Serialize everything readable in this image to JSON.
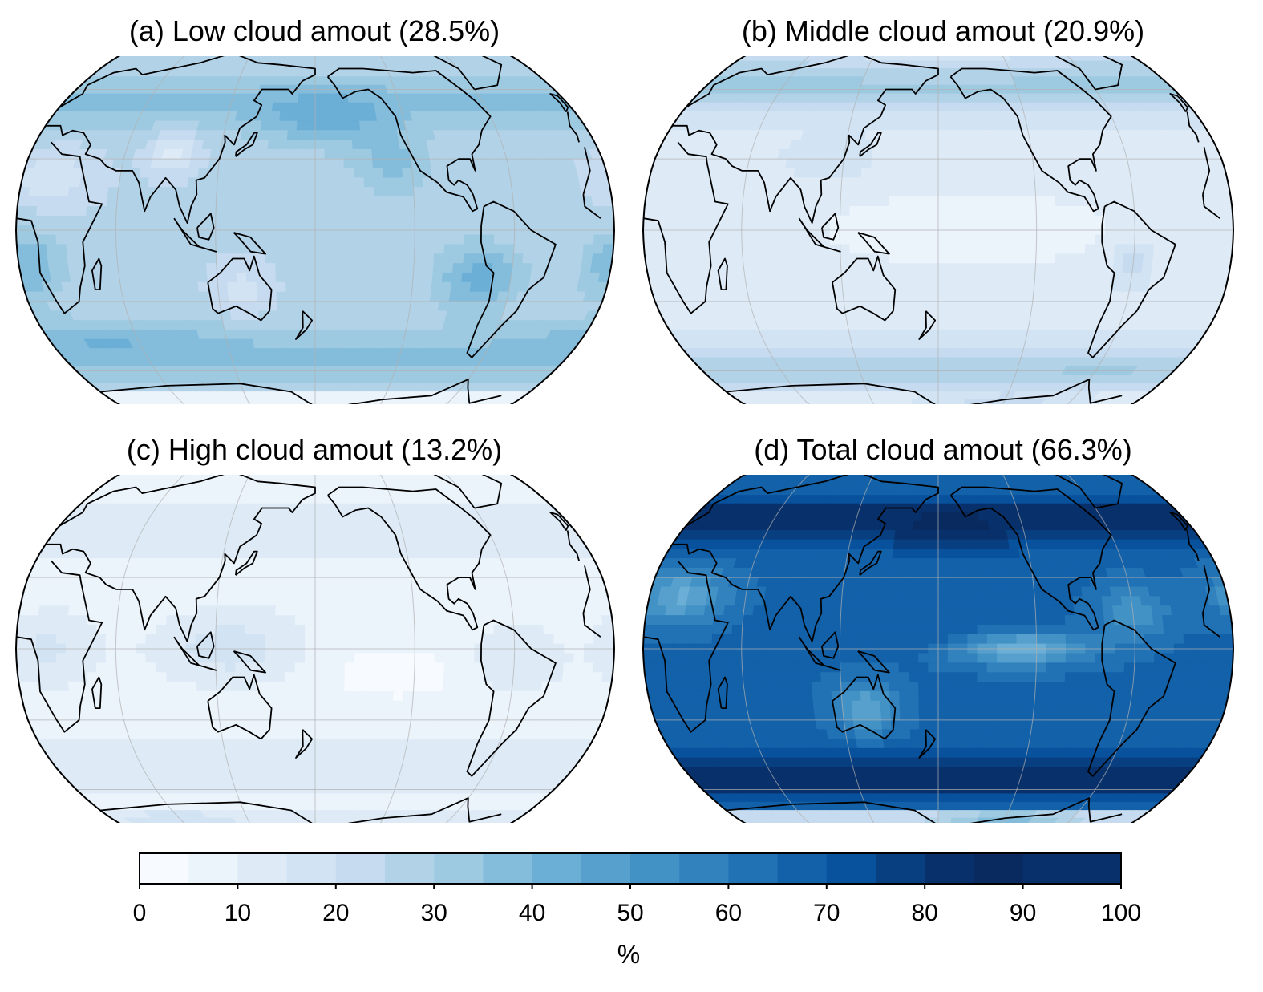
{
  "panels": [
    {
      "title": "(a) Low cloud amout (28.5%)",
      "variable": "low",
      "mean_percent": 28.5
    },
    {
      "title": "(b) Middle cloud amout (20.9%)",
      "variable": "middle",
      "mean_percent": 20.9
    },
    {
      "title": "(c) High cloud amout (13.2%)",
      "variable": "high",
      "mean_percent": 13.2
    },
    {
      "title": "(d) Total cloud amout (66.3%)",
      "variable": "total",
      "mean_percent": 66.3
    }
  ],
  "colorbar": {
    "label": "%",
    "ticks": [
      "0",
      "10",
      "20",
      "30",
      "40",
      "50",
      "60",
      "70",
      "80",
      "90",
      "100"
    ],
    "range": [
      0,
      100
    ],
    "step": 5,
    "colors": [
      "#f7fbff",
      "#ebf3fb",
      "#deebf7",
      "#d2e3f3",
      "#c6dbef",
      "#b2d2e8",
      "#9ecae1",
      "#84bcdb",
      "#6baed6",
      "#57a0ce",
      "#4292c6",
      "#3282be",
      "#2171b5",
      "#1361a9",
      "#08519c",
      "#083f80",
      "#08306b",
      "#082a5e",
      "#08306b",
      "#08306b"
    ]
  },
  "colors": {
    "coast": "#000000",
    "grid": "#b0b0b0"
  }
}
